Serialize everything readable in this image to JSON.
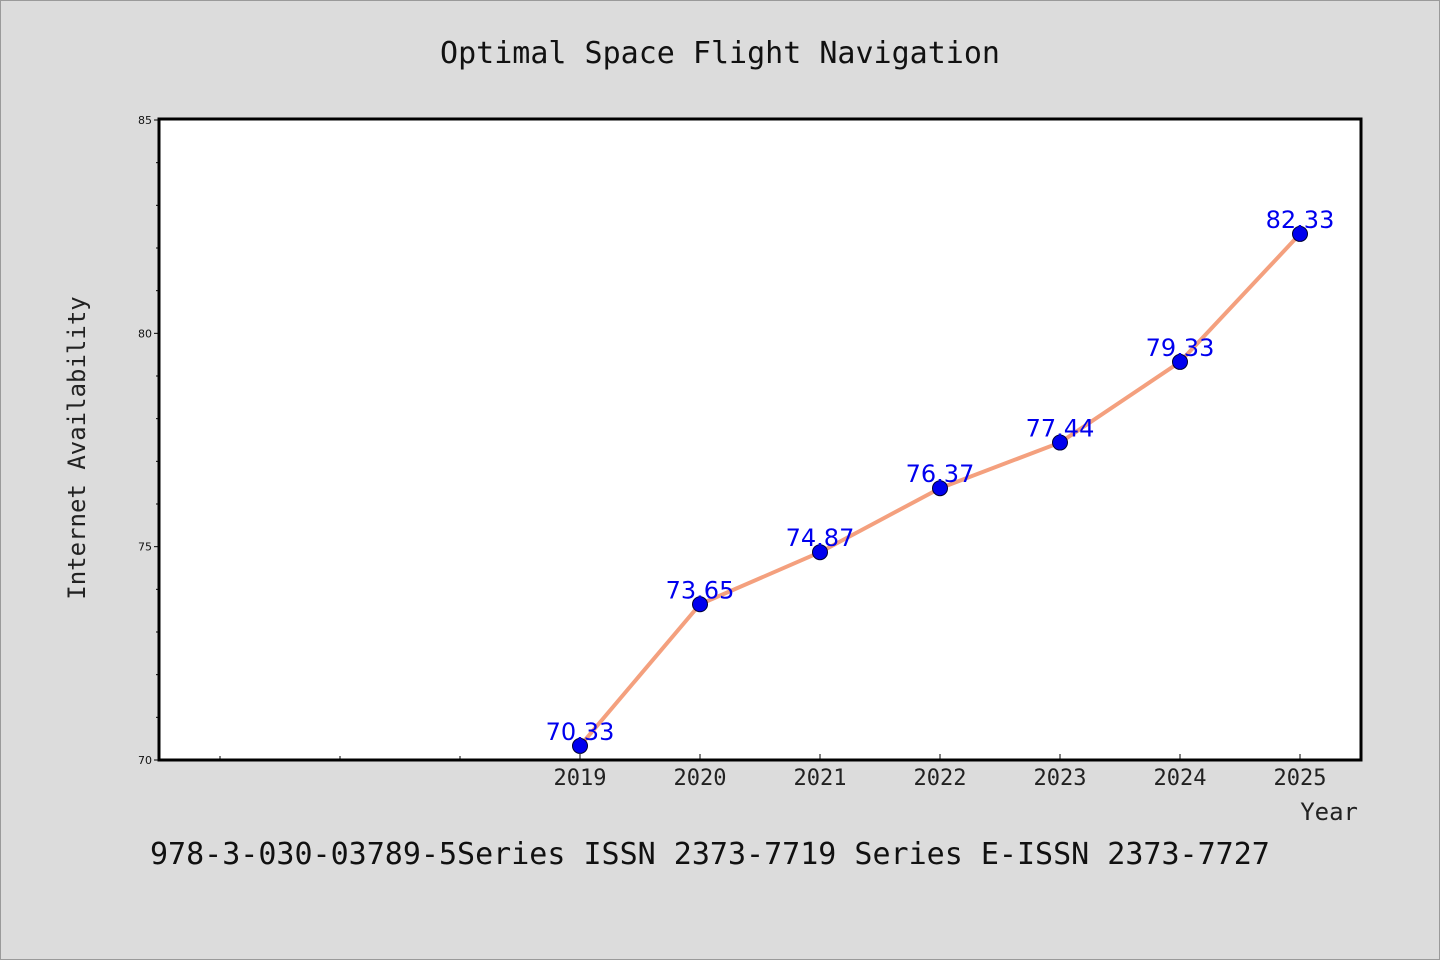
{
  "footer_text": "978-3-030-03789-5Series ISSN 2373-7719 Series E-ISSN 2373-7727",
  "colors": {
    "background": "#dcdcdc",
    "plot_background": "#ffffff",
    "line": "#f4a07e",
    "marker": "#0000ee",
    "data_label": "#0000ee"
  },
  "chart_data": {
    "type": "line",
    "title": "Optimal Space Flight Navigation",
    "xlabel": "Year",
    "ylabel": "Internet Availability",
    "categories": [
      "2019",
      "2020",
      "2021",
      "2022",
      "2023",
      "2024",
      "2025"
    ],
    "series": [
      {
        "values": [
          70.33,
          73.65,
          74.87,
          76.37,
          77.44,
          79.33,
          82.33
        ],
        "labels": [
          "70.33",
          "73.65",
          "74.87",
          "76.37",
          "77.44",
          "79.33",
          "82.33"
        ]
      }
    ],
    "ylim": [
      70,
      85
    ],
    "yticks": [
      70,
      75,
      80,
      85
    ],
    "grid": false,
    "legend": "none"
  }
}
